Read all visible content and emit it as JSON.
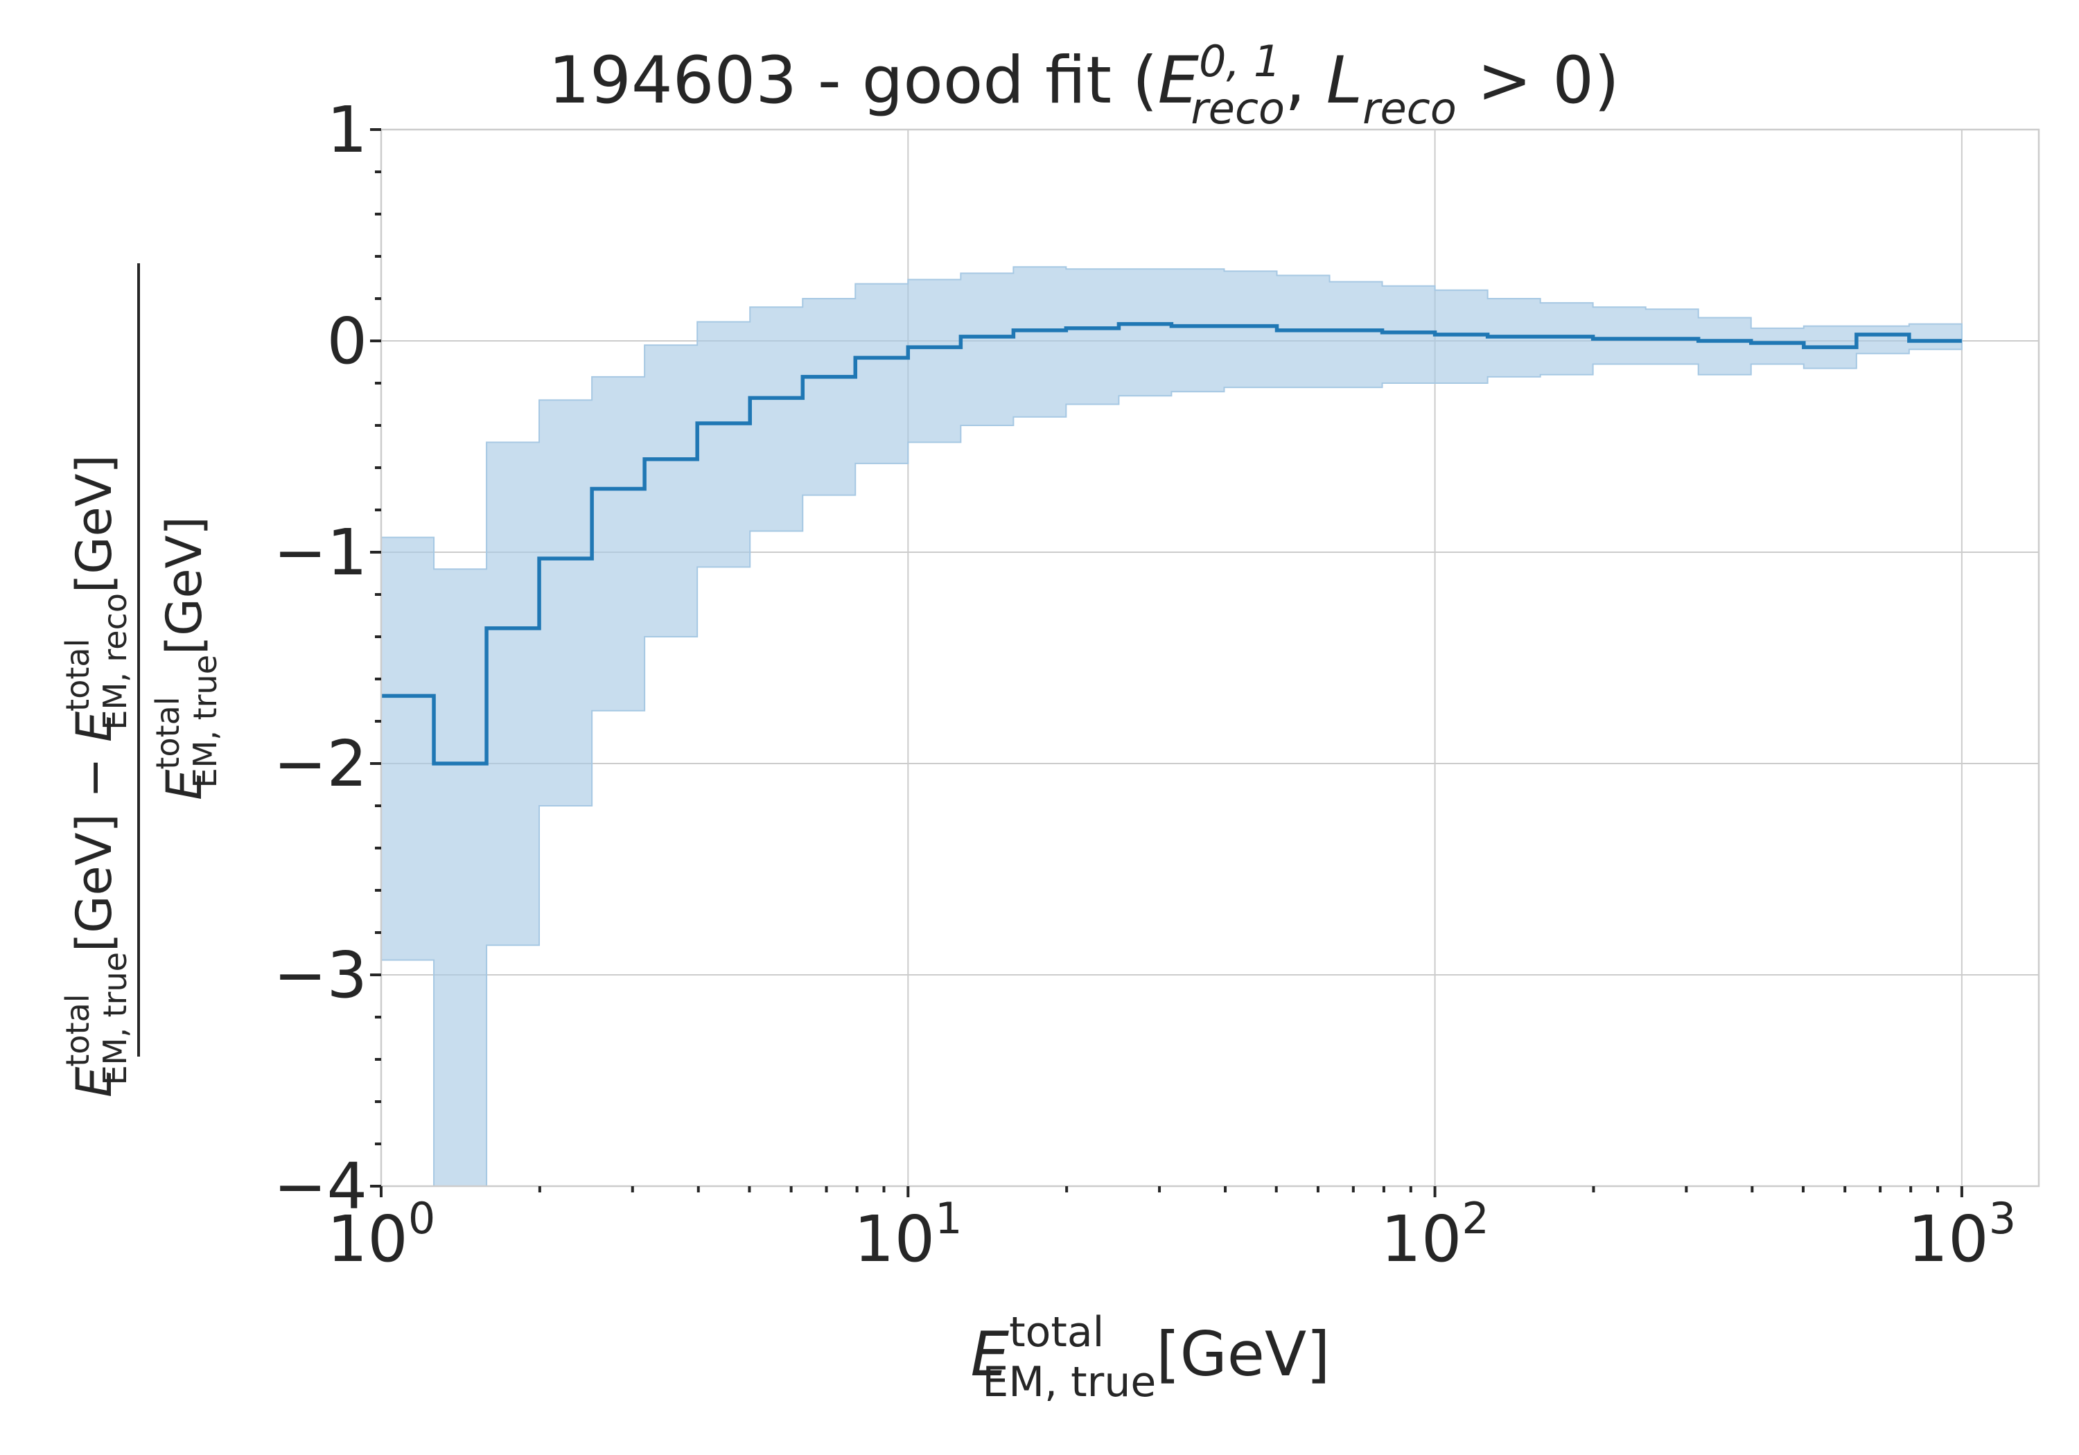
{
  "chart_data": {
    "type": "line",
    "style": "step-with-band",
    "title": {
      "prefix": "194603 - good fit (",
      "e_base": "E",
      "e_sup": "0, 1",
      "e_sub": "reco",
      "sep": ", ",
      "l_base": "L",
      "l_sub": "reco",
      "suffix": " > 0)"
    },
    "xlabel": {
      "base": "E",
      "sup": "total",
      "sub": "EM, true",
      "unit": "[GeV]"
    },
    "ylabel": {
      "num_base1": "E",
      "num_sup1": "total",
      "num_sub1": "EM, true",
      "num_unit1": "[GeV] − ",
      "num_base2": "E",
      "num_sup2": "total",
      "num_sub2": "EM, reco",
      "num_unit2": "[GeV]",
      "den_base": "E",
      "den_sup": "total",
      "den_sub": "EM, true",
      "den_unit": "[GeV]"
    },
    "x_scale": "log",
    "xlim": [
      1,
      1400
    ],
    "ylim": [
      -4,
      1
    ],
    "grid": true,
    "line_color": "#1f77b4",
    "band_color": "#a6c8e3",
    "x_ticks": [
      {
        "value": 1,
        "base": "10",
        "exp": "0"
      },
      {
        "value": 10,
        "base": "10",
        "exp": "1"
      },
      {
        "value": 100,
        "base": "10",
        "exp": "2"
      },
      {
        "value": 1000,
        "base": "10",
        "exp": "3"
      }
    ],
    "y_ticks": [
      {
        "value": 1,
        "label": "1"
      },
      {
        "value": 0,
        "label": "0"
      },
      {
        "value": -1,
        "label": "−1"
      },
      {
        "value": -2,
        "label": "−2"
      },
      {
        "value": -3,
        "label": "−3"
      },
      {
        "value": -4,
        "label": "−4"
      }
    ],
    "bin_edges": [
      1.0,
      1.259,
      1.585,
      1.995,
      2.512,
      3.162,
      3.981,
      5.012,
      6.31,
      7.943,
      10.0,
      12.59,
      15.85,
      19.95,
      25.12,
      31.62,
      39.81,
      50.12,
      63.1,
      79.43,
      100.0,
      125.9,
      158.5,
      199.5,
      251.2,
      316.2,
      398.1,
      501.2,
      631.0,
      794.3,
      1000.0
    ],
    "series": [
      {
        "median": [
          -1.68,
          -2.0,
          -1.36,
          -1.03,
          -0.7,
          -0.56,
          -0.39,
          -0.27,
          -0.17,
          -0.08,
          -0.03,
          0.02,
          0.05,
          0.06,
          0.08,
          0.07,
          0.07,
          0.05,
          0.05,
          0.04,
          0.03,
          0.02,
          0.02,
          0.01,
          0.01,
          0.0,
          -0.01,
          -0.03,
          0.03,
          0.0
        ],
        "lower": [
          -2.93,
          -4.0,
          -2.86,
          -2.2,
          -1.75,
          -1.4,
          -1.07,
          -0.9,
          -0.73,
          -0.58,
          -0.48,
          -0.4,
          -0.36,
          -0.3,
          -0.26,
          -0.24,
          -0.22,
          -0.22,
          -0.22,
          -0.2,
          -0.2,
          -0.17,
          -0.16,
          -0.11,
          -0.11,
          -0.16,
          -0.11,
          -0.13,
          -0.06,
          -0.04
        ],
        "upper": [
          -0.93,
          -1.08,
          -0.48,
          -0.28,
          -0.17,
          -0.02,
          0.09,
          0.16,
          0.2,
          0.27,
          0.29,
          0.32,
          0.35,
          0.34,
          0.34,
          0.34,
          0.33,
          0.31,
          0.28,
          0.26,
          0.24,
          0.2,
          0.18,
          0.16,
          0.15,
          0.11,
          0.06,
          0.07,
          0.07,
          0.08
        ]
      }
    ]
  }
}
